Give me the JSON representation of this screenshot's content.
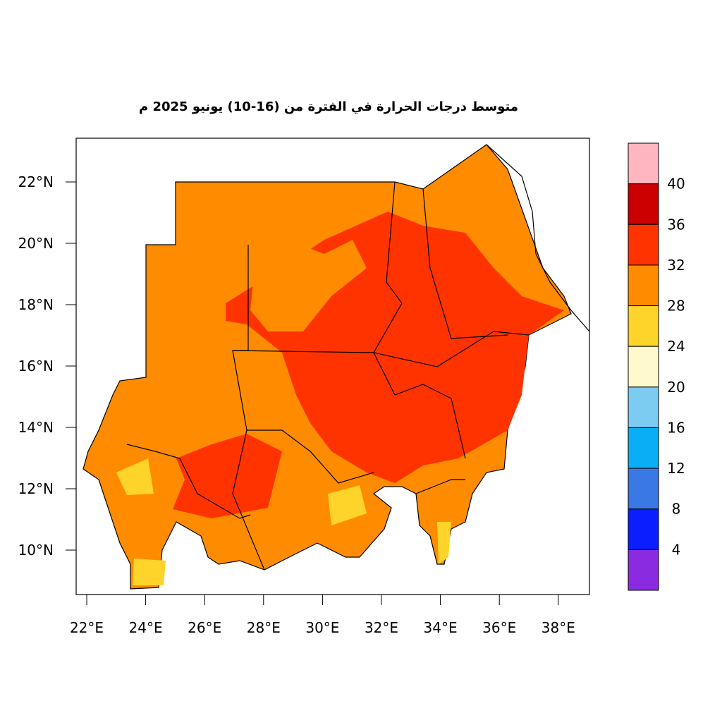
{
  "map": {
    "title": "متوسط درجات الحرارة في الفترة من (16-10) يونيو 2025 م",
    "lon_ticks": [
      "22°E",
      "24°E",
      "26°E",
      "28°E",
      "30°E",
      "32°E",
      "34°E",
      "36°E",
      "38°E"
    ],
    "lat_ticks": [
      "22°N",
      "20°N",
      "18°N",
      "16°N",
      "14°N",
      "12°N",
      "10°N"
    ],
    "colorbar": {
      "colors": [
        "#ffb6c1",
        "#cc0000",
        "#ff3300",
        "#ff8c00",
        "#ffd42a",
        "#fffacd",
        "#7ccbf0",
        "#0aaef5",
        "#3a78e6",
        "#0a1eff",
        "#8a2be2"
      ],
      "labels": [
        "40",
        "36",
        "32",
        "28",
        "24",
        "20",
        "16",
        "12",
        "8",
        "4"
      ]
    }
  }
}
